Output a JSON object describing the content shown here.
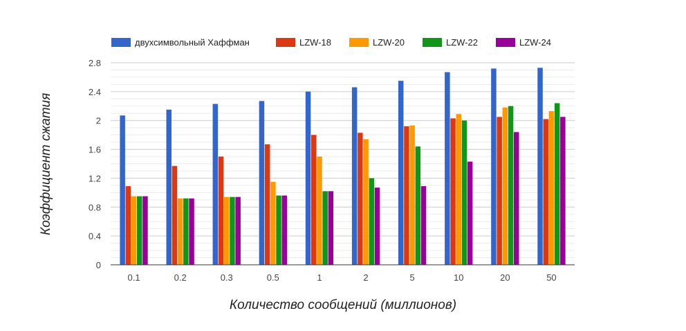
{
  "chart_data": {
    "type": "bar",
    "title": "",
    "xlabel": "Количество сообщений (миллионов)",
    "ylabel": "Коэффициент сжатия",
    "categories": [
      "0.1",
      "0.2",
      "0.3",
      "0.5",
      "1",
      "2",
      "5",
      "10",
      "20",
      "50"
    ],
    "ylim": [
      0,
      2.8
    ],
    "yticks": [
      "0",
      "0.4",
      "0.8",
      "1.2",
      "1.6",
      "2",
      "2.4",
      "2.8"
    ],
    "grid": true,
    "legend_position": "top",
    "series": [
      {
        "name": "двухсимвольный Хаффман",
        "color": "#3366cc",
        "values": [
          2.07,
          2.15,
          2.23,
          2.27,
          2.4,
          2.46,
          2.55,
          2.67,
          2.72,
          2.73
        ]
      },
      {
        "name": "LZW-18",
        "color": "#dc3912",
        "values": [
          1.09,
          1.37,
          1.5,
          1.67,
          1.8,
          1.83,
          1.92,
          2.03,
          2.05,
          2.02
        ]
      },
      {
        "name": "LZW-20",
        "color": "#ff9900",
        "values": [
          0.95,
          0.92,
          0.94,
          1.15,
          1.5,
          1.74,
          1.93,
          2.09,
          2.18,
          2.13
        ]
      },
      {
        "name": "LZW-22",
        "color": "#109618",
        "values": [
          0.95,
          0.92,
          0.94,
          0.96,
          1.02,
          1.2,
          1.64,
          2.0,
          2.2,
          2.24
        ]
      },
      {
        "name": "LZW-24",
        "color": "#990099",
        "values": [
          0.95,
          0.92,
          0.94,
          0.96,
          1.02,
          1.07,
          1.09,
          1.43,
          1.84,
          2.05
        ]
      }
    ]
  }
}
